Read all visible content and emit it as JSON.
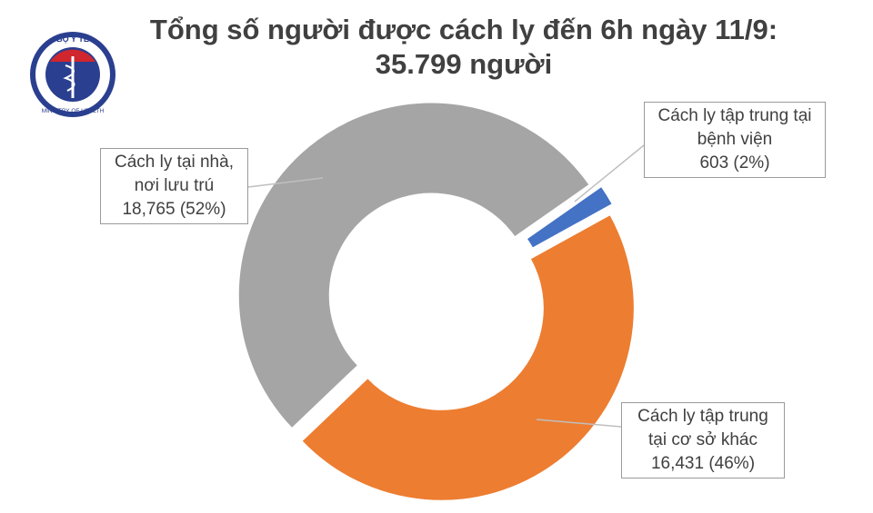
{
  "logo": {
    "top_text": "BỘ Y TẾ",
    "bottom_text": "MINISTRY OF HEALTH"
  },
  "chart_data": {
    "type": "donut",
    "title": "Tổng số người được cách ly đến 6h ngày 11/9: 35.799 người",
    "categories": [
      "Cách ly tập trung tại bệnh viện",
      "Cách ly tập trung tại cơ sở khác",
      "Cách ly tại nhà, nơi lưu trú"
    ],
    "values": [
      603,
      16431,
      18765
    ],
    "value_labels": [
      "603 (2%)",
      "16,431 (46%)",
      "18,765 (52%)"
    ],
    "colors": [
      "#4472c4",
      "#ed7d31",
      "#a5a5a5"
    ]
  }
}
